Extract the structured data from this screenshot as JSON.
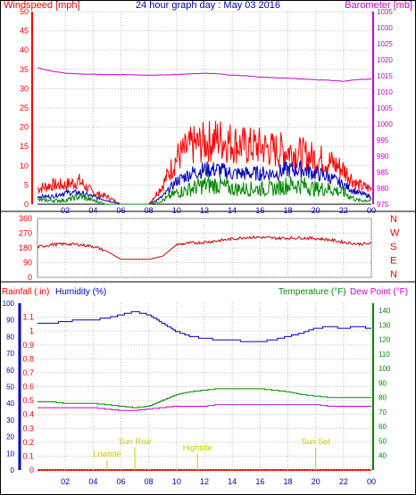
{
  "header": {
    "left_title": "Windspeed [mph]",
    "center_title": "24 hour graph day : May 03 2016",
    "right_title": "Barometer [mb]"
  },
  "colors": {
    "red": "#ff0000",
    "darkred": "#cc0000",
    "blue": "#0000bb",
    "green": "#008800",
    "magenta": "#cc00cc",
    "gold": "#cccc00",
    "grid": "#bbbbbb"
  },
  "chart_data": [
    {
      "type": "area",
      "title": "Windspeed [mph]",
      "right_title": "Barometer [mb]",
      "x_tick_labels": [
        "02",
        "04",
        "06",
        "08",
        "10",
        "12",
        "14",
        "16",
        "18",
        "20",
        "22",
        "00"
      ],
      "x_hours": [
        0,
        1,
        2,
        3,
        4,
        5,
        6,
        7,
        8,
        9,
        10,
        11,
        12,
        13,
        14,
        15,
        16,
        17,
        18,
        19,
        20,
        21,
        22,
        23,
        24
      ],
      "left_axis": {
        "label": "Windspeed [mph]",
        "range": [
          0,
          50
        ],
        "ticks": [
          0,
          5,
          10,
          15,
          20,
          25,
          30,
          35,
          40,
          45,
          50
        ]
      },
      "right_axis": {
        "label": "Barometer [mb]",
        "range": [
          975,
          1035
        ],
        "ticks": [
          975,
          980,
          985,
          990,
          995,
          1000,
          1005,
          1010,
          1015,
          1020,
          1025,
          1030,
          1035
        ]
      },
      "series": [
        {
          "name": "Windspeed gust",
          "axis": "left",
          "values": [
            4,
            5,
            5,
            6,
            3,
            2,
            0,
            0,
            0,
            5,
            12,
            15,
            16,
            17,
            16,
            15,
            15,
            14,
            14,
            13,
            12,
            11,
            9,
            5,
            4
          ]
        },
        {
          "name": "Windspeed average",
          "axis": "left",
          "values": [
            2,
            2,
            3,
            3,
            2,
            1,
            0,
            0,
            0,
            2,
            6,
            8,
            9,
            9,
            8,
            8,
            8,
            8,
            9,
            9,
            8,
            7,
            5,
            3,
            2
          ]
        },
        {
          "name": "Windspeed low",
          "axis": "left",
          "values": [
            1,
            1,
            1,
            2,
            1,
            0,
            0,
            0,
            0,
            1,
            3,
            4,
            5,
            5,
            4,
            4,
            4,
            4,
            5,
            5,
            4,
            4,
            3,
            1,
            1
          ]
        },
        {
          "name": "Barometer",
          "axis": "right",
          "values": [
            1017.5,
            1016.5,
            1015.8,
            1015.6,
            1015.5,
            1015.4,
            1015.4,
            1015.3,
            1015.2,
            1015.3,
            1015.4,
            1015.6,
            1015.8,
            1015.6,
            1015.2,
            1015.0,
            1014.6,
            1014.4,
            1014.3,
            1014.0,
            1013.8,
            1013.6,
            1013.3,
            1013.8,
            1014.0
          ]
        }
      ]
    },
    {
      "type": "line",
      "title": "Wind direction",
      "x_tick_labels": [
        "02",
        "04",
        "06",
        "08",
        "10",
        "12",
        "14",
        "16",
        "18",
        "20",
        "22",
        "00"
      ],
      "x_hours": [
        0,
        1,
        2,
        3,
        4,
        5,
        6,
        7,
        8,
        9,
        10,
        11,
        12,
        13,
        14,
        15,
        16,
        17,
        18,
        19,
        20,
        21,
        22,
        23,
        24
      ],
      "left_axis": {
        "range": [
          0,
          360
        ],
        "ticks": [
          0,
          90,
          180,
          270,
          360
        ]
      },
      "right_axis_labels": [
        "N",
        "W",
        "S",
        "E",
        "N"
      ],
      "series": [
        {
          "name": "Wind direction",
          "values": [
            185,
            200,
            205,
            200,
            190,
            160,
            110,
            110,
            110,
            130,
            200,
            210,
            215,
            225,
            235,
            245,
            245,
            240,
            240,
            242,
            238,
            230,
            215,
            205,
            205
          ]
        }
      ]
    },
    {
      "type": "line",
      "title": "Rainfall / Humidity / Temperature / Dew Point",
      "x_tick_labels": [
        "02",
        "04",
        "06",
        "08",
        "10",
        "12",
        "14",
        "16",
        "18",
        "20",
        "22",
        "00"
      ],
      "x_hours": [
        0,
        1,
        2,
        3,
        4,
        5,
        6,
        7,
        8,
        9,
        10,
        11,
        12,
        13,
        14,
        15,
        16,
        17,
        18,
        19,
        20,
        21,
        22,
        23,
        24
      ],
      "header_labels": {
        "rainfall": "Rainfall (.in)",
        "humidity": "Humidity (%)",
        "temperature": "Temperature (°F)",
        "dewpoint": "Dew Point (°F)"
      },
      "rain_axis": {
        "range": [
          0,
          1.2
        ],
        "ticks": [
          "0",
          "0.1",
          "0.2",
          "0.3",
          "0.4",
          "0.5",
          "0.6",
          "0.7",
          "0.8",
          "0.9",
          "1",
          "1.1"
        ]
      },
      "humidity_axis": {
        "range": [
          0,
          100
        ],
        "ticks": [
          0,
          10,
          20,
          30,
          40,
          50,
          60,
          70,
          80,
          90,
          100
        ]
      },
      "temperature_axis": {
        "range": [
          30,
          145
        ],
        "ticks": [
          40,
          50,
          60,
          70,
          80,
          90,
          100,
          110,
          120,
          130,
          140
        ]
      },
      "series": [
        {
          "name": "Rainfall",
          "axis": "rain",
          "values": [
            0,
            0,
            0,
            0,
            0,
            0,
            0,
            0,
            0,
            0,
            0,
            0,
            0,
            0,
            0,
            0,
            0,
            0,
            0,
            0,
            0,
            0,
            0,
            0,
            0
          ]
        },
        {
          "name": "Humidity",
          "axis": "humidity",
          "values": [
            88,
            88,
            89,
            90,
            90,
            91,
            93,
            95,
            93,
            88,
            83,
            80,
            79,
            78,
            78,
            77,
            77,
            78,
            80,
            82,
            85,
            86,
            85,
            86,
            85
          ]
        },
        {
          "name": "Temperature",
          "axis": "temperature",
          "values": [
            77,
            77,
            76,
            76,
            76,
            75,
            74,
            73,
            74,
            78,
            82,
            84,
            85,
            86,
            86,
            86,
            86,
            85,
            84,
            82,
            81,
            80,
            80,
            80,
            80
          ]
        },
        {
          "name": "Dew Point",
          "axis": "temperature",
          "values": [
            73,
            73,
            73,
            73,
            73,
            72,
            71,
            71,
            72,
            73,
            74,
            74,
            74,
            75,
            75,
            75,
            75,
            75,
            75,
            75,
            75,
            74,
            74,
            74,
            74
          ]
        }
      ],
      "annotations": [
        {
          "label": "Lowtide",
          "hour": 5.0
        },
        {
          "label": "Sun Rise",
          "hour": 7.0
        },
        {
          "label": "Hightide",
          "hour": 11.5
        },
        {
          "label": "Sun Set",
          "hour": 20.0
        }
      ]
    }
  ]
}
